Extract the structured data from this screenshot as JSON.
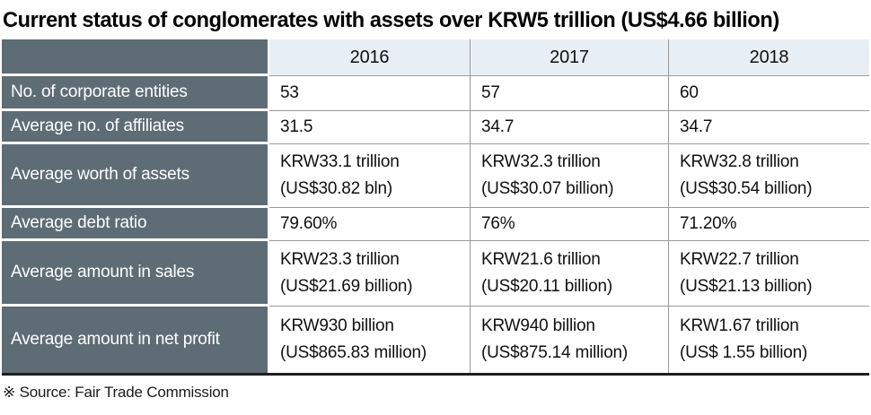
{
  "title": "Current status of conglomerates with assets over KRW5 trillion (US$4.66 billion)",
  "source_note": "※ Source: Fair Trade Commission",
  "colors": {
    "label_column_bg": "#5e6c75",
    "year_header_bg": "#e8eff4",
    "grid_line": "#9a9a9a",
    "bottom_rule": "#1f1f1f",
    "label_text": "#ffffff",
    "value_text": "#101010"
  },
  "chart_data": {
    "type": "table",
    "title": "Current status of conglomerates with assets over KRW5 trillion (US$4.66 billion)",
    "source": "Fair Trade Commission",
    "columns": [
      "",
      "2016",
      "2017",
      "2018"
    ],
    "rows": [
      {
        "label": "No. of corporate entities",
        "values": [
          [
            "53"
          ],
          [
            "57"
          ],
          [
            "60"
          ]
        ]
      },
      {
        "label": "Average no. of affiliates",
        "values": [
          [
            "31.5"
          ],
          [
            "34.7"
          ],
          [
            "34.7"
          ]
        ]
      },
      {
        "label": "Average worth of assets",
        "values": [
          [
            "KRW33.1 trillion",
            "(US$30.82 bln)"
          ],
          [
            "KRW32.3 trillion",
            "(US$30.07 billion)"
          ],
          [
            "KRW32.8 trillion",
            "(US$30.54 billion)"
          ]
        ]
      },
      {
        "label": "Average debt ratio",
        "values": [
          [
            "79.60%"
          ],
          [
            "76%"
          ],
          [
            "71.20%"
          ]
        ]
      },
      {
        "label": "Average amount in sales",
        "values": [
          [
            "KRW23.3 trillion",
            "(US$21.69 billion)"
          ],
          [
            "KRW21.6 trillion",
            "(US$20.11 billion)"
          ],
          [
            "KRW22.7 trillion",
            "(US$21.13 billion)"
          ]
        ]
      },
      {
        "label": "Average amount in net profit",
        "values": [
          [
            "KRW930 billion",
            "(US$865.83 million)"
          ],
          [
            "KRW940 billion",
            "(US$875.14 million)"
          ],
          [
            "KRW1.67 trillion",
            "(US$ 1.55 billion)"
          ]
        ]
      }
    ]
  }
}
